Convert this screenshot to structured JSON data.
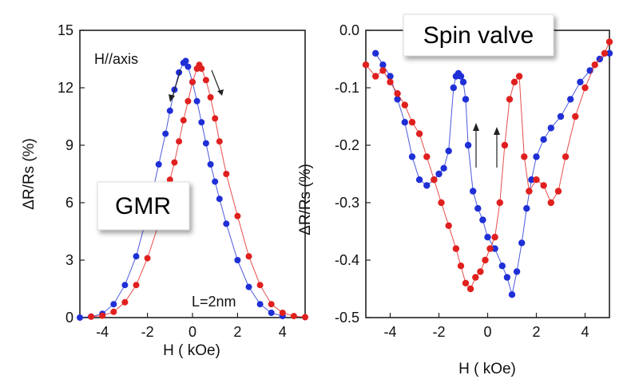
{
  "chart_data": [
    {
      "type": "scatter",
      "panel": "left",
      "xlabel": "H ( kOe)",
      "ylabel": "ΔR/Rs (%)",
      "xlim": [
        -5,
        5
      ],
      "ylim": [
        0,
        15
      ],
      "xticks": [
        "-4",
        "-2",
        "0",
        "2",
        "4"
      ],
      "yticks": [
        "0",
        "3",
        "6",
        "9",
        "12",
        "15"
      ],
      "grid": false,
      "annotations": {
        "badge": "GMR",
        "field_dir": "H//axis",
        "thickness": "L=2nm"
      },
      "series": [
        {
          "color": "#1f2fd6",
          "x": [
            -5,
            -4.5,
            -4,
            -3.5,
            -3,
            -2.5,
            -2,
            -1.5,
            -1.2,
            -1,
            -0.8,
            -0.6,
            -0.4,
            -0.3,
            -0.2,
            0,
            0.2,
            0.4,
            0.6,
            0.8,
            1,
            1.2,
            1.5,
            2,
            2.5,
            3,
            3.5,
            4
          ],
          "y": [
            0,
            0.05,
            0.2,
            0.7,
            1.7,
            3.2,
            5.4,
            8.0,
            9.6,
            10.8,
            11.9,
            12.8,
            13.3,
            13.4,
            13.1,
            12.3,
            11.3,
            10.2,
            9.1,
            8.0,
            7.1,
            6.2,
            4.9,
            3.0,
            1.6,
            0.7,
            0.25,
            0.08
          ]
        },
        {
          "color": "#e0201e",
          "x": [
            -4.5,
            -4,
            -3.5,
            -3,
            -2.5,
            -2,
            -1.5,
            -1.2,
            -1,
            -0.8,
            -0.6,
            -0.4,
            -0.2,
            0,
            0.2,
            0.3,
            0.4,
            0.6,
            0.8,
            1,
            1.2,
            1.5,
            2,
            2.5,
            3,
            3.5,
            4,
            4.5,
            5
          ],
          "y": [
            0.05,
            0.1,
            0.3,
            0.8,
            1.7,
            3.1,
            4.9,
            6.3,
            7.2,
            8.1,
            9.2,
            10.3,
            11.3,
            12.3,
            13.0,
            13.2,
            13.0,
            12.4,
            11.5,
            10.4,
            9.2,
            7.5,
            5.3,
            3.2,
            1.7,
            0.7,
            0.25,
            0.08,
            0.02
          ]
        }
      ]
    },
    {
      "type": "scatter",
      "panel": "right",
      "xlabel": "H ( kOe)",
      "ylabel": "ΔR/Rs (%)",
      "xlim": [
        -5,
        5
      ],
      "ylim": [
        -0.5,
        0
      ],
      "xticks": [
        "-4",
        "-2",
        "0",
        "2",
        "4"
      ],
      "yticks": [
        "0.0",
        "-0.1",
        "-0.2",
        "-0.3",
        "-0.4",
        "-0.5"
      ],
      "grid": false,
      "annotations": {
        "badge": "Spin valve"
      },
      "series": [
        {
          "color": "#1f2fd6",
          "x": [
            5,
            4.6,
            4.2,
            3.8,
            3.4,
            3.0,
            2.6,
            2.3,
            2.0,
            1.8,
            1.6,
            1.4,
            1.2,
            1.0,
            0.8,
            0.6,
            0.3,
            0,
            -0.2,
            -0.4,
            -0.6,
            -0.8,
            -0.9,
            -1.0,
            -1.1,
            -1.2,
            -1.3,
            -1.4,
            -1.6,
            -1.8,
            -2.0,
            -2.2,
            -2.5,
            -2.8,
            -3.1,
            -3.4,
            -3.7,
            -4.0,
            -4.3,
            -4.6
          ],
          "y": [
            -0.04,
            -0.05,
            -0.07,
            -0.09,
            -0.12,
            -0.15,
            -0.17,
            -0.19,
            -0.22,
            -0.26,
            -0.31,
            -0.37,
            -0.42,
            -0.46,
            -0.43,
            -0.41,
            -0.38,
            -0.36,
            -0.33,
            -0.31,
            -0.28,
            -0.2,
            -0.12,
            -0.09,
            -0.08,
            -0.075,
            -0.08,
            -0.1,
            -0.21,
            -0.24,
            -0.25,
            -0.26,
            -0.27,
            -0.26,
            -0.22,
            -0.16,
            -0.12,
            -0.08,
            -0.06,
            -0.04
          ]
        },
        {
          "color": "#e0201e",
          "x": [
            -5,
            -4.6,
            -4.3,
            -4.0,
            -3.7,
            -3.4,
            -3.1,
            -2.8,
            -2.5,
            -2.2,
            -1.9,
            -1.6,
            -1.3,
            -1.1,
            -0.9,
            -0.7,
            -0.5,
            -0.3,
            -0.1,
            0.1,
            0.3,
            0.5,
            0.7,
            0.9,
            1.1,
            1.3,
            1.5,
            1.7,
            2.0,
            2.3,
            2.6,
            2.9,
            3.2,
            3.6,
            4.0,
            4.4,
            4.8,
            5.0
          ],
          "y": [
            -0.06,
            -0.08,
            -0.07,
            -0.09,
            -0.11,
            -0.13,
            -0.16,
            -0.18,
            -0.22,
            -0.26,
            -0.3,
            -0.34,
            -0.38,
            -0.41,
            -0.44,
            -0.45,
            -0.43,
            -0.42,
            -0.4,
            -0.38,
            -0.36,
            -0.3,
            -0.2,
            -0.12,
            -0.09,
            -0.08,
            -0.22,
            -0.28,
            -0.26,
            -0.27,
            -0.3,
            -0.28,
            -0.22,
            -0.15,
            -0.1,
            -0.06,
            -0.04,
            -0.02
          ]
        }
      ]
    }
  ]
}
